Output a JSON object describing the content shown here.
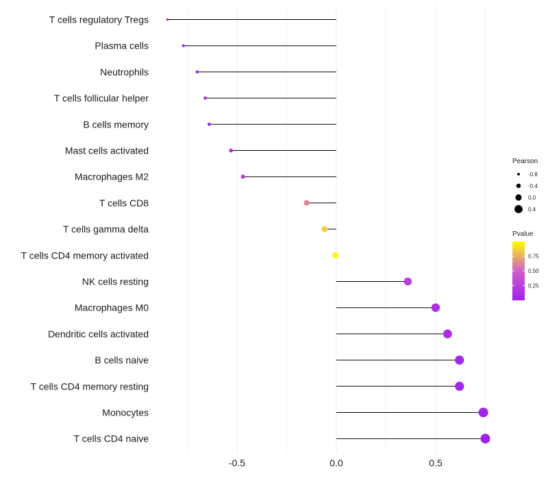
{
  "chart_data": {
    "type": "lollipop",
    "title": "",
    "xlabel": "",
    "ylabel": "",
    "xlim": [
      -1.0,
      0.8
    ],
    "x_ticks": [
      -0.5,
      0.0,
      0.5
    ],
    "x_tick_labels": [
      "-0.5",
      "0.0",
      "0.5"
    ],
    "grid": true,
    "colors": {
      "low": "#a020f0",
      "mid": "#d060c8",
      "high": "#ffff00"
    },
    "points": [
      {
        "category": "T cells regulatory  Tregs",
        "pearson": -0.85,
        "pvalue": 0.01
      },
      {
        "category": "Plasma cells",
        "pearson": -0.77,
        "pvalue": 0.02
      },
      {
        "category": "Neutrophils",
        "pearson": -0.7,
        "pvalue": 0.03
      },
      {
        "category": "T cells follicular helper",
        "pearson": -0.66,
        "pvalue": 0.05
      },
      {
        "category": "B cells memory",
        "pearson": -0.64,
        "pvalue": 0.06
      },
      {
        "category": "Mast cells activated",
        "pearson": -0.53,
        "pvalue": 0.12
      },
      {
        "category": "Macrophages M2",
        "pearson": -0.47,
        "pvalue": 0.17
      },
      {
        "category": "T cells CD8",
        "pearson": -0.15,
        "pvalue": 0.62
      },
      {
        "category": "T cells gamma delta",
        "pearson": -0.06,
        "pvalue": 0.85
      },
      {
        "category": "T cells CD4 memory activated",
        "pearson": -0.005,
        "pvalue": 0.98
      },
      {
        "category": "NK cells resting",
        "pearson": 0.36,
        "pvalue": 0.26
      },
      {
        "category": "Macrophages M0",
        "pearson": 0.5,
        "pvalue": 0.12
      },
      {
        "category": "Dendritic cells activated",
        "pearson": 0.56,
        "pvalue": 0.08
      },
      {
        "category": "B cells naive",
        "pearson": 0.62,
        "pvalue": 0.05
      },
      {
        "category": "T cells CD4 memory resting",
        "pearson": 0.62,
        "pvalue": 0.05
      },
      {
        "category": "Monocytes",
        "pearson": 0.74,
        "pvalue": 0.02
      },
      {
        "category": "T cells CD4 naive",
        "pearson": 0.75,
        "pvalue": 0.01
      }
    ],
    "legend_size": {
      "title": "Pearson",
      "values": [
        -0.8,
        -0.4,
        0.0,
        0.4
      ],
      "labels": [
        "-0.8",
        "-0.4",
        "0.0",
        "0.4"
      ]
    },
    "legend_color": {
      "title": "Pvalue",
      "range": [
        0.0,
        1.0
      ],
      "ticks": [
        0.25,
        0.5,
        0.75
      ],
      "labels": [
        "0.25",
        "0.50",
        "0.75"
      ]
    },
    "legend_position": "right"
  }
}
